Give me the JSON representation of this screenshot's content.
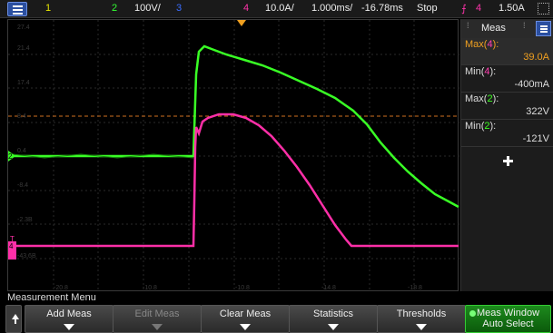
{
  "topbar": {
    "ch1": "1",
    "ch2_num": "2",
    "ch2_scale": "100V/",
    "ch3": "3",
    "ch4_num": "4",
    "ch4_scale": "10.0A/",
    "timebase": "1.000ms/",
    "delay": "-16.78ms",
    "run_state": "Stop",
    "trig_source": "4",
    "trig_level": "1.50A",
    "colors": {
      "ch1": "#e8e800",
      "ch2": "#33ff33",
      "ch3": "#3a6dff",
      "ch4": "#ff33aa",
      "run_state": "#ff6a6a"
    }
  },
  "plot": {
    "left_ticks": [
      "27.4",
      "21.4",
      "17.4",
      "8.4",
      "0.4",
      "-8.4",
      "-2.3B",
      "-43.6B"
    ],
    "bottom_ticks": [
      "-20.8",
      "-10.8",
      "-10.8",
      "-14.8",
      "-18.8"
    ],
    "ch2_marker": "2",
    "ch4_marker": "4",
    "trigger_marker": "T"
  },
  "meas": {
    "title": "Meas",
    "items": [
      {
        "label_prefix": "Max(",
        "ch": "4",
        "label_suffix": "):",
        "value": "39.0A"
      },
      {
        "label_prefix": "Min(",
        "ch": "4",
        "label_suffix": "):",
        "value": "-400mA"
      },
      {
        "label_prefix": "Max(",
        "ch": "2",
        "label_suffix": "):",
        "value": "322V"
      },
      {
        "label_prefix": "Min(",
        "ch": "2",
        "label_suffix": "):",
        "value": "-121V"
      }
    ]
  },
  "menu": {
    "title": "Measurement Menu",
    "softkeys": [
      "Add Meas",
      "Edit Meas",
      "Clear Meas",
      "Statistics",
      "Thresholds"
    ],
    "green_line1": "Meas Window",
    "green_line2": "Auto Select"
  }
}
